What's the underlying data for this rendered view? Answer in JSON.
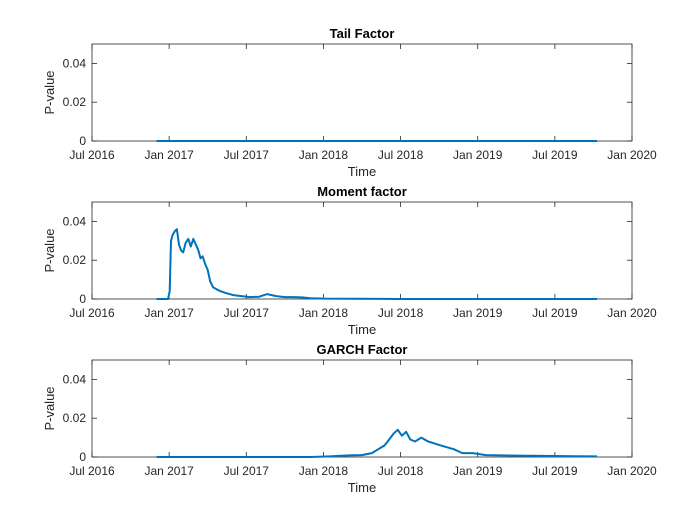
{
  "chart_data": [
    {
      "type": "line",
      "title": "Tail Factor",
      "xlabel": "Time",
      "ylabel": "P-value",
      "xlim": [
        "2016-07-01",
        "2020-01-01"
      ],
      "ylim": [
        0,
        0.05
      ],
      "xticks": [
        "Jul 2016",
        "Jan 2017",
        "Jul 2017",
        "Jan 2018",
        "Jul 2018",
        "Jan 2019",
        "Jul 2019",
        "Jan 2020"
      ],
      "yticks": [
        "0",
        "0.02",
        "0.04"
      ],
      "grid": false,
      "color": "#0072BD",
      "series": [
        {
          "x": [
            "2016-12-01",
            "2017-06-01",
            "2018-01-01",
            "2018-07-01",
            "2019-01-01",
            "2019-07-01",
            "2019-10-10"
          ],
          "y": [
            0,
            0,
            0,
            0,
            0,
            0,
            0
          ]
        }
      ]
    },
    {
      "type": "line",
      "title": "Moment factor",
      "xlabel": "Time",
      "ylabel": "P-value",
      "xlim": [
        "2016-07-01",
        "2020-01-01"
      ],
      "ylim": [
        0,
        0.05
      ],
      "xticks": [
        "Jul 2016",
        "Jan 2017",
        "Jul 2017",
        "Jan 2018",
        "Jul 2018",
        "Jan 2019",
        "Jul 2019",
        "Jan 2020"
      ],
      "yticks": [
        "0",
        "0.02",
        "0.04"
      ],
      "grid": false,
      "color": "#0072BD",
      "series": [
        {
          "x": [
            "2016-12-01",
            "2016-12-28",
            "2017-01-01",
            "2017-01-04",
            "2017-01-08",
            "2017-01-13",
            "2017-01-18",
            "2017-01-23",
            "2017-01-28",
            "2017-02-02",
            "2017-02-08",
            "2017-02-14",
            "2017-02-20",
            "2017-02-26",
            "2017-03-04",
            "2017-03-10",
            "2017-03-15",
            "2017-03-20",
            "2017-03-26",
            "2017-04-01",
            "2017-04-07",
            "2017-04-14",
            "2017-04-22",
            "2017-05-01",
            "2017-05-15",
            "2017-06-01",
            "2017-06-20",
            "2017-07-10",
            "2017-08-01",
            "2017-08-20",
            "2017-09-10",
            "2017-10-01",
            "2017-10-20",
            "2017-11-10",
            "2017-12-01",
            "2018-01-01",
            "2018-07-01",
            "2019-01-01",
            "2019-07-01",
            "2019-10-10"
          ],
          "y": [
            0,
            0,
            0.004,
            0.03,
            0.033,
            0.035,
            0.036,
            0.028,
            0.025,
            0.024,
            0.029,
            0.031,
            0.027,
            0.031,
            0.028,
            0.025,
            0.021,
            0.022,
            0.018,
            0.015,
            0.009,
            0.006,
            0.005,
            0.004,
            0.003,
            0.002,
            0.0015,
            0.001,
            0.0012,
            0.0025,
            0.0015,
            0.001,
            0.001,
            0.0008,
            0.0004,
            0.0002,
            0,
            0,
            0,
            0
          ]
        }
      ]
    },
    {
      "type": "line",
      "title": "GARCH Factor",
      "xlabel": "Time",
      "ylabel": "P-value",
      "xlim": [
        "2016-07-01",
        "2020-01-01"
      ],
      "ylim": [
        0,
        0.05
      ],
      "xticks": [
        "Jul 2016",
        "Jan 2017",
        "Jul 2017",
        "Jan 2018",
        "Jul 2018",
        "Jan 2019",
        "Jul 2019",
        "Jan 2020"
      ],
      "yticks": [
        "0",
        "0.02",
        "0.04"
      ],
      "grid": false,
      "color": "#0072BD",
      "series": [
        {
          "x": [
            "2016-12-01",
            "2017-06-01",
            "2017-12-01",
            "2018-01-15",
            "2018-03-01",
            "2018-04-01",
            "2018-04-25",
            "2018-05-10",
            "2018-05-25",
            "2018-06-05",
            "2018-06-15",
            "2018-06-25",
            "2018-07-05",
            "2018-07-15",
            "2018-07-25",
            "2018-08-05",
            "2018-08-20",
            "2018-09-05",
            "2018-09-20",
            "2018-10-05",
            "2018-10-20",
            "2018-11-05",
            "2018-11-25",
            "2018-12-20",
            "2019-01-20",
            "2019-03-01",
            "2019-05-01",
            "2019-07-01",
            "2019-08-20",
            "2019-10-10"
          ],
          "y": [
            0,
            0,
            0,
            0.0003,
            0.0008,
            0.001,
            0.002,
            0.004,
            0.006,
            0.009,
            0.012,
            0.014,
            0.011,
            0.013,
            0.009,
            0.008,
            0.01,
            0.008,
            0.007,
            0.006,
            0.005,
            0.004,
            0.002,
            0.002,
            0.001,
            0.0008,
            0.0006,
            0.0005,
            0.0004,
            0.0003
          ]
        }
      ]
    }
  ]
}
